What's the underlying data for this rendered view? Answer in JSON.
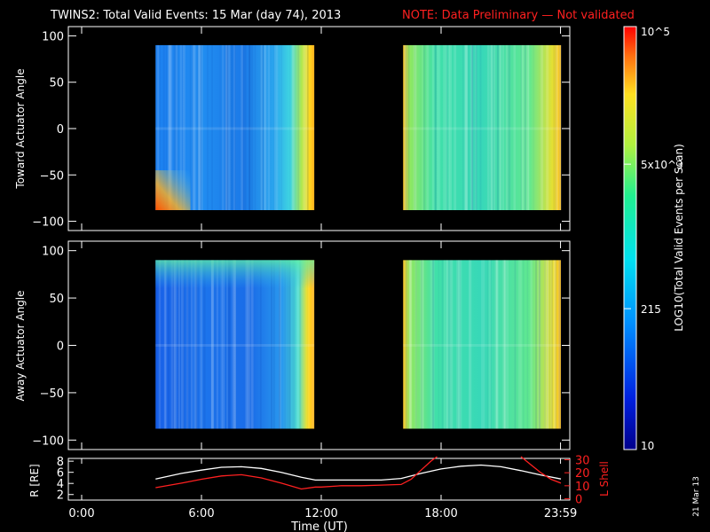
{
  "title": {
    "main": "TWINS2: Total Valid Events: 15 Mar (day  74), 2013",
    "note": "NOTE: Data Preliminary — Not validated",
    "note_color": "#ff0000"
  },
  "date_stamp": "21 Mar 13",
  "chart_data": [
    {
      "type": "heatmap",
      "name": "toward",
      "ylabel": "Toward Actuator Angle",
      "ylim": [
        -110,
        110
      ],
      "yticks": [
        "100",
        "50",
        "0",
        "−50",
        "−100"
      ],
      "ytick_values": [
        100,
        50,
        0,
        -50,
        -100
      ],
      "data_blocks": [
        {
          "t_start": 3.7,
          "t_end": 11.65,
          "angle_min": -88,
          "angle_max": 90,
          "level": "low (blue-cyan), rising to yellow near 11.3h"
        },
        {
          "t_start": 16.1,
          "t_end": 24.0,
          "angle_min": -88,
          "angle_max": 90,
          "level": "mid (green), yellow at edges"
        }
      ]
    },
    {
      "type": "heatmap",
      "name": "away",
      "ylabel": "Away Actuator Angle",
      "ylim": [
        -110,
        110
      ],
      "yticks": [
        "100",
        "50",
        "0",
        "−50",
        "−100"
      ],
      "ytick_values": [
        100,
        50,
        0,
        -50,
        -100
      ],
      "data_blocks": [
        {
          "t_start": 3.7,
          "t_end": 11.65,
          "angle_min": -88,
          "angle_max": 90,
          "level": "low (blue), band near +80 cyan-green, yellow near 11.3h"
        },
        {
          "t_start": 16.1,
          "t_end": 24.0,
          "angle_min": -88,
          "angle_max": 90,
          "level": "mid (green), yellow at edges"
        }
      ]
    },
    {
      "type": "line",
      "name": "ephemeris",
      "ylabel_left": "R [RE]",
      "ylabel_right": "L Shell",
      "xlabel": "Time (UT)",
      "xticks": [
        "0:00",
        "6:00",
        "12:00",
        "18:00",
        "23:59"
      ],
      "xtick_values": [
        0,
        6,
        12,
        18,
        23.98
      ],
      "left_ticks": [
        "8",
        "6",
        "4",
        "2"
      ],
      "left_tick_values": [
        8,
        6,
        4,
        2
      ],
      "right_ticks": [
        "30",
        "20",
        "10",
        "0"
      ],
      "right_tick_values": [
        30,
        20,
        10,
        0
      ],
      "series": [
        {
          "name": "R",
          "color": "#ffffff",
          "axis": "left",
          "x": [
            3.7,
            5,
            6,
            7,
            8,
            9,
            10,
            11,
            11.7,
            12,
            13,
            14,
            15,
            16,
            17,
            18,
            19,
            20,
            21,
            22,
            23,
            24
          ],
          "y": [
            4.8,
            5.8,
            6.4,
            6.9,
            7.0,
            6.7,
            6.0,
            5.1,
            4.6,
            4.6,
            4.6,
            4.6,
            4.6,
            4.9,
            5.8,
            6.6,
            7.1,
            7.3,
            7.0,
            6.3,
            5.5,
            4.8
          ]
        },
        {
          "name": "L Shell",
          "color": "#ff2020",
          "axis": "right",
          "x": [
            3.7,
            5,
            6,
            7,
            8,
            9,
            10,
            11,
            11.7,
            12,
            13,
            14,
            15,
            16,
            16.5,
            17,
            17.5,
            17.8
          ],
          "y": [
            8.5,
            12,
            15,
            17.5,
            18.5,
            16,
            12,
            7.5,
            9,
            9,
            10,
            10,
            10.5,
            11,
            15,
            22,
            29,
            33
          ]
        },
        {
          "name": "L Shell tail",
          "color": "#ff2020",
          "axis": "right",
          "x": [
            22.0,
            22.5,
            23,
            23.5,
            24
          ],
          "y": [
            33,
            26,
            20,
            15,
            12
          ]
        }
      ]
    }
  ],
  "colorbar": {
    "label": "LOG10(Total Valid Events per Scan)",
    "ticks": [
      "10",
      "215",
      "5x10^3",
      "10^5"
    ],
    "tick_values": [
      10,
      215,
      5000,
      100000
    ]
  }
}
